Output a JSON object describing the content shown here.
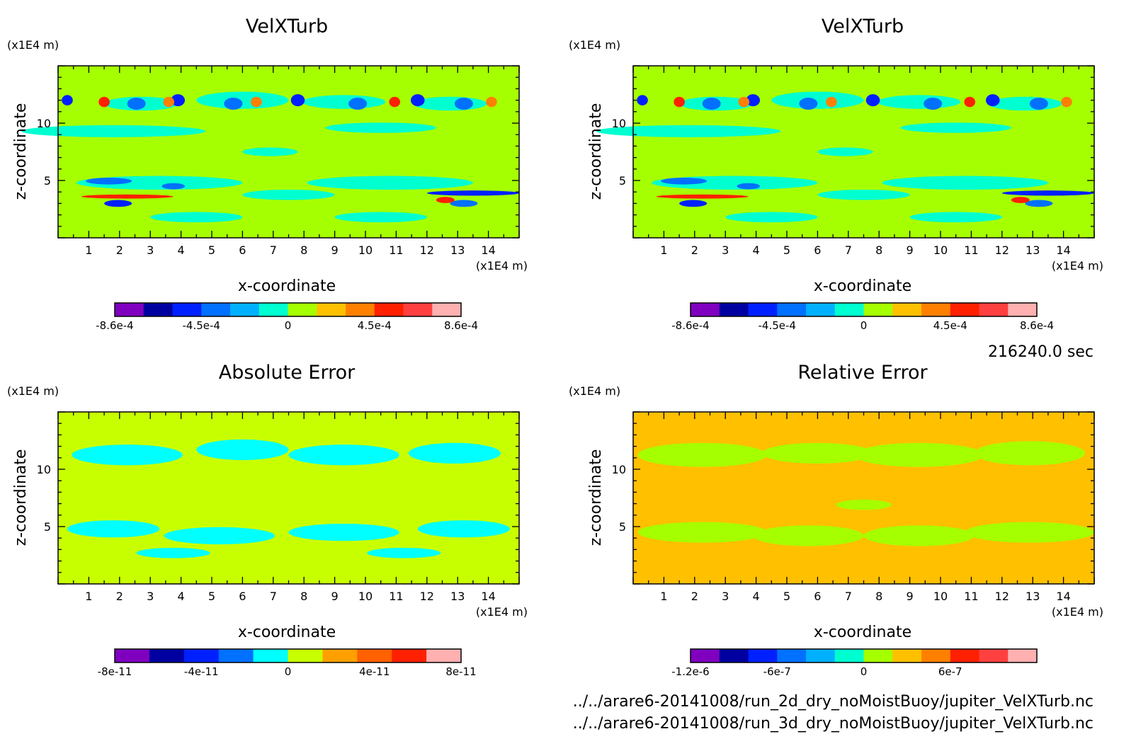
{
  "timestamp": "216240.0 sec",
  "files": [
    "../../arare6-20141008/run_2d_dry_noMoistBuoy/jupiter_VelXTurb.nc",
    "../../arare6-20141008/run_3d_dry_noMoistBuoy/jupiter_VelXTurb.nc"
  ],
  "chart_data": [
    {
      "type": "heatmap",
      "title": "VelXTurb",
      "xlabel": "x-coordinate",
      "ylabel": "z-coordinate",
      "xunit": "(x1E4 m)",
      "yunit": "(x1E4 m)",
      "xlim": [
        0,
        15
      ],
      "ylim": [
        0,
        15
      ],
      "xticks": [
        1,
        2,
        3,
        4,
        5,
        6,
        7,
        8,
        9,
        10,
        11,
        12,
        13,
        14
      ],
      "yticks": [
        5,
        10
      ],
      "background": "#a6ff00",
      "colorbar": {
        "colors": [
          "#8000c0",
          "#0000a0",
          "#0020ff",
          "#0070ff",
          "#00b0ff",
          "#00ffd0",
          "#a6ff00",
          "#ffc000",
          "#ff8000",
          "#ff2000",
          "#ff4040",
          "#ffb0b0"
        ],
        "labels": [
          "-8.6e-4",
          "-4.5e-4",
          "0",
          "4.5e-4",
          "8.6e-4"
        ]
      }
    },
    {
      "type": "heatmap",
      "title": "VelXTurb",
      "xlabel": "x-coordinate",
      "ylabel": "z-coordinate",
      "xunit": "(x1E4 m)",
      "yunit": "(x1E4 m)",
      "xlim": [
        0,
        15
      ],
      "ylim": [
        0,
        15
      ],
      "xticks": [
        1,
        2,
        3,
        4,
        5,
        6,
        7,
        8,
        9,
        10,
        11,
        12,
        13,
        14
      ],
      "yticks": [
        5,
        10
      ],
      "background": "#a6ff00",
      "colorbar": {
        "colors": [
          "#8000c0",
          "#0000a0",
          "#0020ff",
          "#0070ff",
          "#00b0ff",
          "#00ffd0",
          "#a6ff00",
          "#ffc000",
          "#ff8000",
          "#ff2000",
          "#ff4040",
          "#ffb0b0"
        ],
        "labels": [
          "-8.6e-4",
          "-4.5e-4",
          "0",
          "4.5e-4",
          "8.6e-4"
        ]
      }
    },
    {
      "type": "heatmap",
      "title": "Absolute Error",
      "xlabel": "x-coordinate",
      "ylabel": "z-coordinate",
      "xunit": "(x1E4 m)",
      "yunit": "(x1E4 m)",
      "xlim": [
        0,
        15
      ],
      "ylim": [
        0,
        15
      ],
      "xticks": [
        1,
        2,
        3,
        4,
        5,
        6,
        7,
        8,
        9,
        10,
        11,
        12,
        13,
        14
      ],
      "yticks": [
        5,
        10
      ],
      "background": "#c8ff00",
      "colorbar": {
        "colors": [
          "#8000c0",
          "#0000a0",
          "#0020ff",
          "#0070ff",
          "#00ffff",
          "#c8ff00",
          "#ffa000",
          "#ff6000",
          "#ff2000",
          "#ffb0b0"
        ],
        "labels": [
          "-8e-11",
          "-4e-11",
          "0",
          "4e-11",
          "8e-11"
        ]
      }
    },
    {
      "type": "heatmap",
      "title": "Relative Error",
      "xlabel": "x-coordinate",
      "ylabel": "z-coordinate",
      "xunit": "(x1E4 m)",
      "yunit": "(x1E4 m)",
      "xlim": [
        0,
        15
      ],
      "ylim": [
        0,
        15
      ],
      "xticks": [
        1,
        2,
        3,
        4,
        5,
        6,
        7,
        8,
        9,
        10,
        11,
        12,
        13,
        14
      ],
      "yticks": [
        5,
        10
      ],
      "background": "#ffc000",
      "colorbar": {
        "colors": [
          "#8000c0",
          "#0000a0",
          "#0020ff",
          "#0070ff",
          "#00b0ff",
          "#00ffd0",
          "#a6ff00",
          "#ffc000",
          "#ff8000",
          "#ff2000",
          "#ff4040",
          "#ffb0b0"
        ],
        "labels": [
          "-1.2e-6",
          "-6e-7",
          "0",
          "6e-7"
        ]
      }
    }
  ]
}
